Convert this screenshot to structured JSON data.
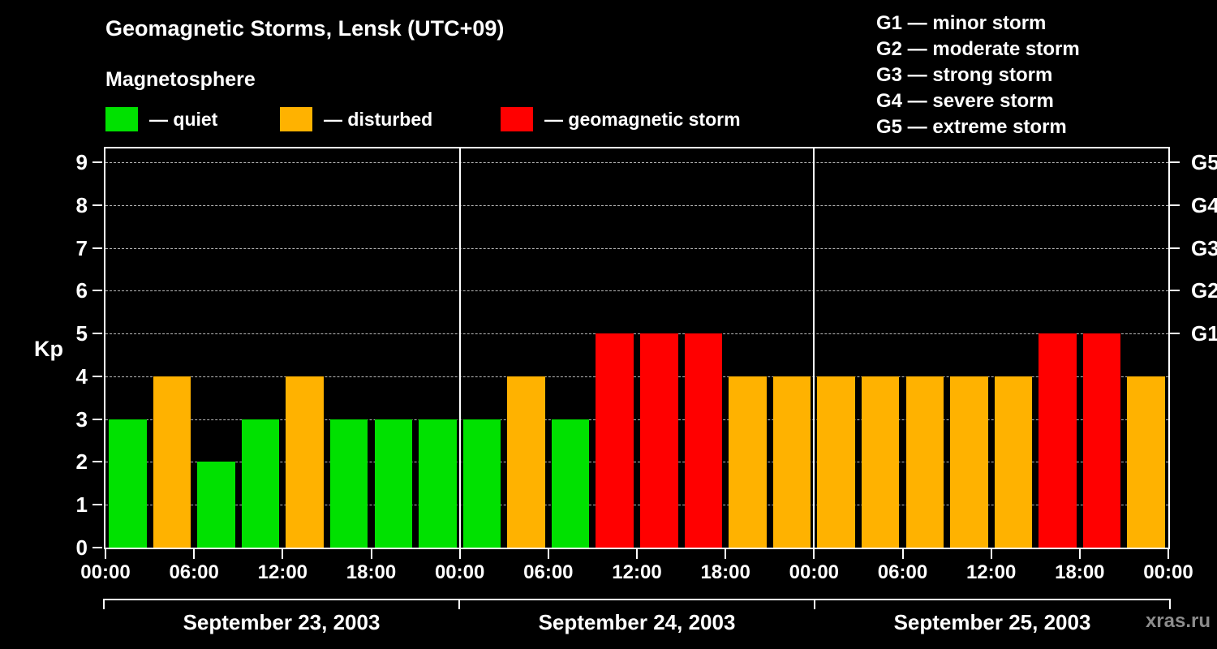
{
  "watermark": "xras.ru",
  "colors": {
    "quiet": "#00e100",
    "disturbed": "#ffb200",
    "storm": "#ff0000",
    "background": "#000000",
    "text": "#ffffff",
    "grid": "#b8b8b8",
    "watermark": "#8c8c8c"
  },
  "legend": {
    "header": "Magnetosphere",
    "items": [
      {
        "key": "quiet",
        "label": "— quiet"
      },
      {
        "key": "disturbed",
        "label": "— disturbed"
      },
      {
        "key": "storm",
        "label": "— geomagnetic storm"
      }
    ]
  },
  "storm_scale": [
    "G1 — minor storm",
    "G2 — moderate storm",
    "G3 — strong storm",
    "G4 — severe storm",
    "G5 — extreme storm"
  ],
  "chart_data": {
    "type": "bar",
    "title": "Geomagnetic Storms, Lensk (UTC+09)",
    "ylabel": "Kp",
    "ylim": [
      0,
      9
    ],
    "yticks": [
      0,
      1,
      2,
      3,
      4,
      5,
      6,
      7,
      8,
      9
    ],
    "interval_hours": 3,
    "time_ticks": [
      "00:00",
      "06:00",
      "12:00",
      "18:00"
    ],
    "end_time_label": "00:00",
    "right_axis": [
      {
        "kp": 5,
        "label": "G1"
      },
      {
        "kp": 6,
        "label": "G2"
      },
      {
        "kp": 7,
        "label": "G3"
      },
      {
        "kp": 8,
        "label": "G4"
      },
      {
        "kp": 9,
        "label": "G5"
      }
    ],
    "thresholds": {
      "quiet_max": 3,
      "disturbed_max": 4
    },
    "days": [
      {
        "date": "September 23, 2003",
        "values": [
          3,
          4,
          2,
          3,
          4,
          3,
          3,
          3
        ]
      },
      {
        "date": "September 24, 2003",
        "values": [
          3,
          4,
          3,
          5,
          5,
          5,
          4,
          4
        ]
      },
      {
        "date": "September 25, 2003",
        "values": [
          4,
          4,
          4,
          4,
          4,
          5,
          5,
          4
        ]
      }
    ],
    "grid": "dashed",
    "legend_position": "top"
  }
}
